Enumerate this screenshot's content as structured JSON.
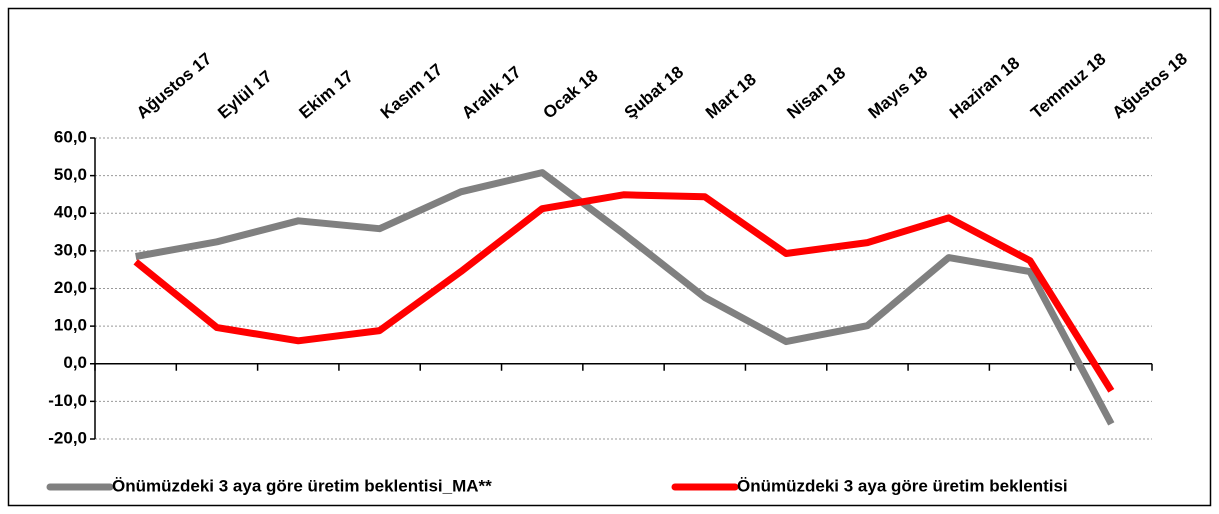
{
  "chart_data": {
    "type": "line",
    "categories": [
      "Ağustos 17",
      "Eylül 17",
      "Ekim 17",
      "Kasım 17",
      "Aralık 17",
      "Ocak 18",
      "Şubat 18",
      "Mart 18",
      "Nisan 18",
      "Mayıs 18",
      "Haziran 18",
      "Temmuz 18",
      "Ağustos 18"
    ],
    "series": [
      {
        "name": "Önümüzdeki 3 aya göre üretim beklentisi_MA**",
        "color": "#808080",
        "values": [
          28.5,
          32.4,
          38.0,
          35.9,
          45.7,
          50.8,
          34.6,
          17.6,
          5.9,
          10.1,
          28.2,
          24.5,
          -16.0
        ]
      },
      {
        "name": "Önümüzdeki 3 aya göre üretim beklentisi",
        "color": "#ff0000",
        "values": [
          27.1,
          9.6,
          6.1,
          8.8,
          24.5,
          41.2,
          44.9,
          44.4,
          29.3,
          32.2,
          38.8,
          27.4,
          -7.2
        ]
      }
    ],
    "ylim": [
      -20,
      60
    ],
    "yticks": [
      {
        "value": -20,
        "label": "-20,0"
      },
      {
        "value": -10,
        "label": "-10,0"
      },
      {
        "value": 0,
        "label": "0,0"
      },
      {
        "value": 10,
        "label": "10,0"
      },
      {
        "value": 20,
        "label": "20,0"
      },
      {
        "value": 30,
        "label": "30,0"
      },
      {
        "value": 40,
        "label": "40,0"
      },
      {
        "value": 50,
        "label": "50,0"
      },
      {
        "value": 60,
        "label": "60,0"
      }
    ],
    "grid": true
  }
}
